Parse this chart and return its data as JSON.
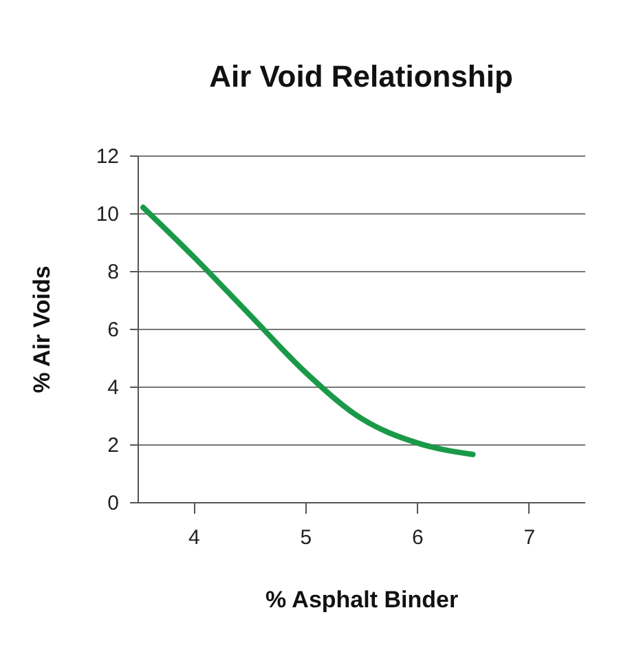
{
  "chart_data": {
    "type": "line",
    "title": "Air Void Relationship",
    "xlabel": "% Asphalt Binder",
    "ylabel": "% Air Voids",
    "x": [
      3.55,
      4,
      4.5,
      5,
      5.5,
      6,
      6.5
    ],
    "series": [
      {
        "color": "#1a9a48",
        "values": [
          10.2,
          8.5,
          6.5,
          4.5,
          2.9,
          2.05,
          1.65
        ]
      }
    ],
    "xlim": [
      3.5,
      7.5
    ],
    "xticks": [
      4,
      5,
      6,
      7
    ],
    "ylim": [
      0,
      12
    ],
    "yticks": [
      0,
      2,
      4,
      6,
      8,
      10,
      12
    ],
    "grid": "y",
    "marker": "none",
    "line_style": "solid"
  }
}
